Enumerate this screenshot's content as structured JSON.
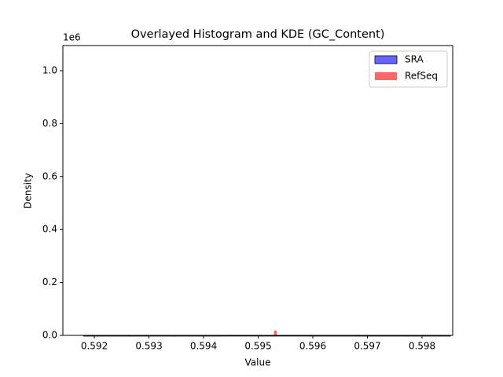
{
  "chart_data": {
    "type": "histogram",
    "title": "Overlayed Histogram and KDE (GC_Content)",
    "x_label": "Value",
    "y_label": "Density",
    "y_offset_label": "1e6",
    "xlim": [
      0.591424,
      0.598561
    ],
    "ylim": [
      0,
      1095000
    ],
    "xticks": [
      0.592,
      0.593,
      0.594,
      0.595,
      0.596,
      0.597,
      0.598
    ],
    "yticks": [
      {
        "value": 0,
        "label": "0.0"
      },
      {
        "value": 200000,
        "label": "0.2"
      },
      {
        "value": 400000,
        "label": "0.4"
      },
      {
        "value": 600000,
        "label": "0.6"
      },
      {
        "value": 800000,
        "label": "0.8"
      },
      {
        "value": 1000000,
        "label": "1.0"
      }
    ],
    "legend": "upper right",
    "series": [
      {
        "name": "SRA",
        "color": "#0000ff",
        "edgecolor": "#000000",
        "bins": [
          0.5918,
          0.59264,
          0.59348,
          0.59432,
          0.59516,
          0.596,
          0.59684,
          0.59768,
          0.59852
        ],
        "values": [
          120,
          90,
          150,
          200,
          180,
          140,
          100,
          130
        ]
      },
      {
        "name": "RefSeq",
        "color": "#ff0000",
        "edgecolor": null,
        "bins": [
          0.59529,
          0.59534
        ],
        "values": [
          18000
        ]
      }
    ]
  }
}
